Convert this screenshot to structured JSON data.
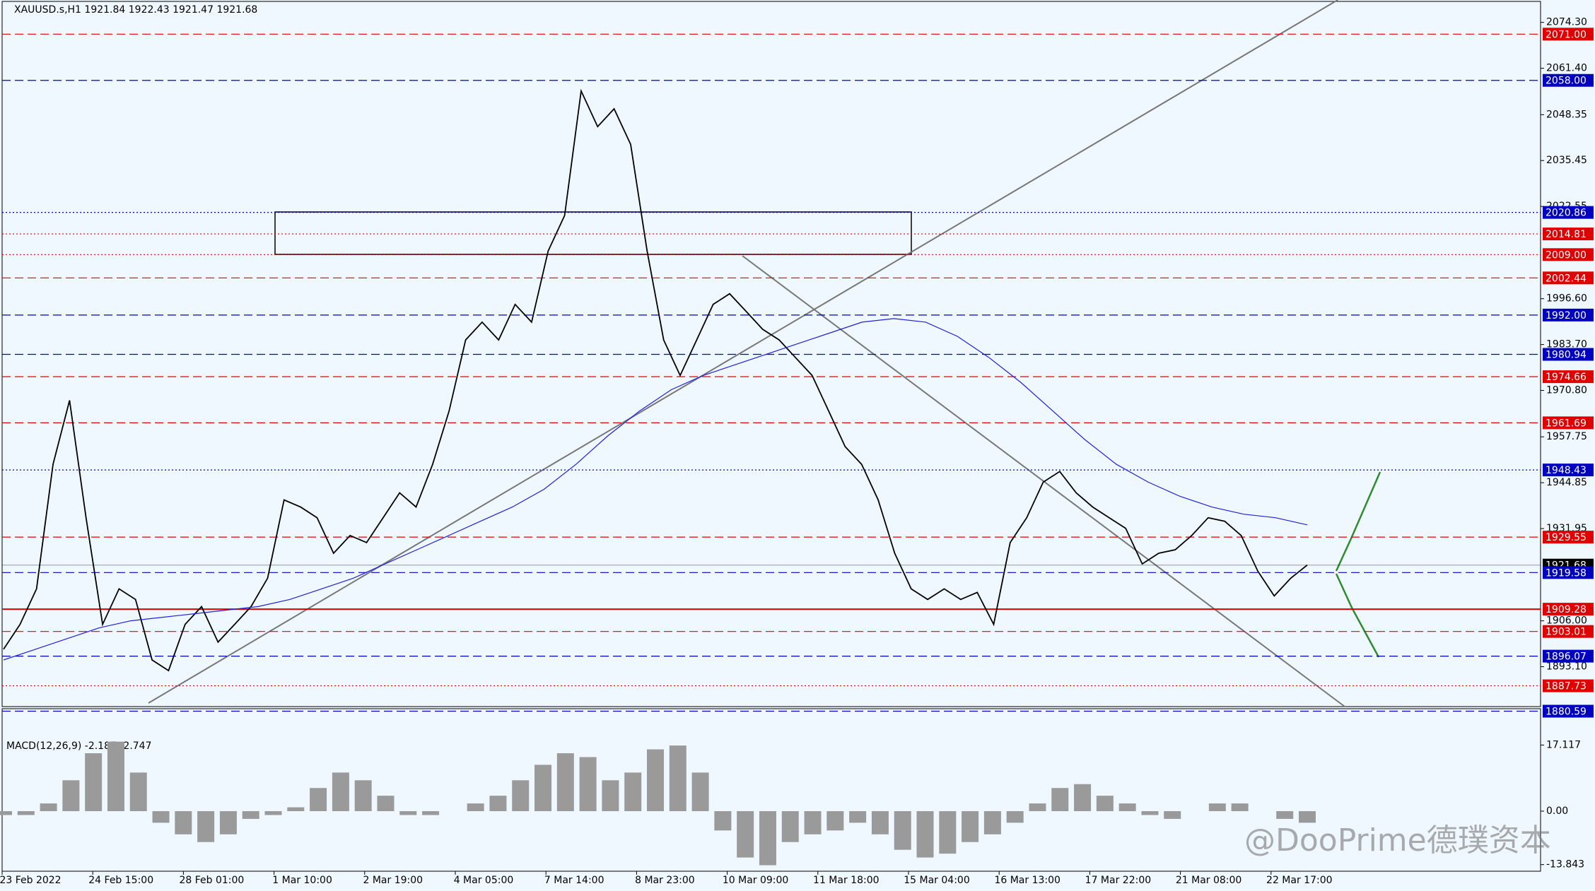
{
  "chart_data": {
    "type": "line",
    "title": "XAUUSD.s,H1  1921.84 1922.43 1921.47 1921.68",
    "ylim": [
      1879.5,
      2080.6
    ],
    "yticks": [
      {
        "value": 2074.3,
        "label": "2074.30"
      },
      {
        "value": 2061.4,
        "label": "2061.40"
      },
      {
        "value": 2048.35,
        "label": "2048.35"
      },
      {
        "value": 2035.45,
        "label": "2035.45"
      },
      {
        "value": 2022.55,
        "label": "2022.55"
      },
      {
        "value": 1996.6,
        "label": "1996.60"
      },
      {
        "value": 1983.7,
        "label": "1983.70"
      },
      {
        "value": 1970.8,
        "label": "1970.80"
      },
      {
        "value": 1957.75,
        "label": "1957.75"
      },
      {
        "value": 1944.85,
        "label": "1944.85"
      },
      {
        "value": 1931.95,
        "label": "1931.95"
      },
      {
        "value": 1906,
        "label": "1906.00"
      },
      {
        "value": 1893.1,
        "label": "1893.10"
      }
    ],
    "levels": [
      {
        "value": 2071,
        "label": "2071.00",
        "color": "#e00000",
        "dash": "12 6"
      },
      {
        "value": 2058,
        "label": "2058.00",
        "color": "#0000c0",
        "dash": "12 6"
      },
      {
        "value": 2020.86,
        "label": "2020.86",
        "color": "#0000c0",
        "dash": "2 3"
      },
      {
        "value": 2014.81,
        "label": "2014.81",
        "color": "#e00000",
        "dash": "2 3"
      },
      {
        "value": 2009,
        "label": "2009.00",
        "color": "#e00000",
        "dash": "2 3"
      },
      {
        "value": 2002.44,
        "label": "2002.44",
        "color": "#e00000",
        "dash": "12 6"
      },
      {
        "value": 1992,
        "label": "1992.00",
        "color": "#0000c0",
        "dash": "12 6"
      },
      {
        "value": 1980.94,
        "label": "1980.94",
        "color": "#0000c0",
        "dash": "12 6"
      },
      {
        "value": 1974.66,
        "label": "1974.66",
        "color": "#e00000",
        "dash": "12 6"
      },
      {
        "value": 1961.69,
        "label": "1961.69",
        "color": "#e00000",
        "dash": "12 6"
      },
      {
        "value": 1948.43,
        "label": "1948.43",
        "color": "#0000c0",
        "dash": "2 3"
      },
      {
        "value": 1929.55,
        "label": "1929.55",
        "color": "#e00000",
        "dash": "12 6"
      },
      {
        "value": 1921.68,
        "label": "1921.68",
        "color": "#000000",
        "dash": "1 0"
      },
      {
        "value": 1919.58,
        "label": "1919.58",
        "color": "#0000c0",
        "dash": "12 6"
      },
      {
        "value": 1909.28,
        "label": "1909.28",
        "color": "#e00000",
        "dash": ""
      },
      {
        "value": 1903.01,
        "label": "1903.01",
        "color": "#e00000",
        "dash": "12 6"
      },
      {
        "value": 1896.07,
        "label": "1896.07",
        "color": "#0000c0",
        "dash": "12 6"
      },
      {
        "value": 1887.73,
        "label": "1887.73",
        "color": "#e00000",
        "dash": "2 3"
      },
      {
        "value": 1880.59,
        "label": "1880.59",
        "color": "#0000c0",
        "dash": "12 6"
      }
    ],
    "series": [
      {
        "color": "#000000",
        "values": [
          1898,
          1905,
          1915,
          1950,
          1968,
          1935,
          1905,
          1915,
          1912,
          1895,
          1892,
          1905,
          1910,
          1900,
          1905,
          1910,
          1918,
          1940,
          1938,
          1935,
          1925,
          1930,
          1928,
          1935,
          1942,
          1938,
          1950,
          1965,
          1985,
          1990,
          1985,
          1995,
          1990,
          2010,
          2020,
          2055,
          2045,
          2050,
          2040,
          2010,
          1985,
          1975,
          1985,
          1995,
          1998,
          1993,
          1988,
          1985,
          1980,
          1975,
          1965,
          1955,
          1950,
          1940,
          1925,
          1915,
          1912,
          1915,
          1912,
          1914,
          1905,
          1928,
          1935,
          1945,
          1948,
          1942,
          1938,
          1935,
          1932,
          1922,
          1925,
          1926,
          1930,
          1935,
          1934,
          1930,
          1920,
          1913,
          1918,
          1921.68
        ]
      },
      {
        "color": "#2020e0",
        "values": [
          1895,
          1898,
          1901,
          1904,
          1906,
          1907,
          1908,
          1909,
          1910,
          1912,
          1915,
          1918,
          1922,
          1926,
          1930,
          1934,
          1938,
          1943,
          1950,
          1958,
          1965,
          1971,
          1975,
          1978,
          1981,
          1984,
          1987,
          1990,
          1991,
          1990,
          1986,
          1980,
          1973,
          1965,
          1957,
          1950,
          1945,
          1941,
          1938,
          1936,
          1935,
          1933
        ]
      }
    ],
    "macd": {
      "label": "MACD(12,26,9) -2.187 -2.747",
      "ylim": [
        -15,
        25.8
      ],
      "yticks": [
        17.117,
        {
          "value": 0,
          "label": "0.00"
        },
        -13.843
      ],
      "values": [
        -1,
        -1,
        2,
        8,
        15,
        18,
        10,
        -3,
        -6,
        -8,
        -6,
        -2,
        -1,
        1,
        6,
        10,
        8,
        4,
        -1,
        -1,
        0,
        2,
        4,
        8,
        12,
        15,
        14,
        8,
        10,
        16,
        17,
        10,
        -5,
        -12,
        -14,
        -8,
        -6,
        -5,
        -3,
        -6,
        -10,
        -12,
        -11,
        -8,
        -6,
        -3,
        2,
        6,
        7,
        4,
        2,
        -1,
        -2,
        0,
        2,
        2,
        0,
        -2,
        -3
      ]
    },
    "xlabels": [
      "23 Feb 2022",
      "24 Feb 15:00",
      "28 Feb 01:00",
      "1 Mar 10:00",
      "2 Mar 19:00",
      "4 Mar 05:00",
      "7 Mar 14:00",
      "8 Mar 23:00",
      "10 Mar 09:00",
      "11 Mar 18:00",
      "15 Mar 04:00",
      "16 Mar 13:00",
      "17 Mar 22:00",
      "21 Mar 08:00",
      "22 Mar 17:00"
    ],
    "watermark": "@DooPrime德璞资本"
  }
}
